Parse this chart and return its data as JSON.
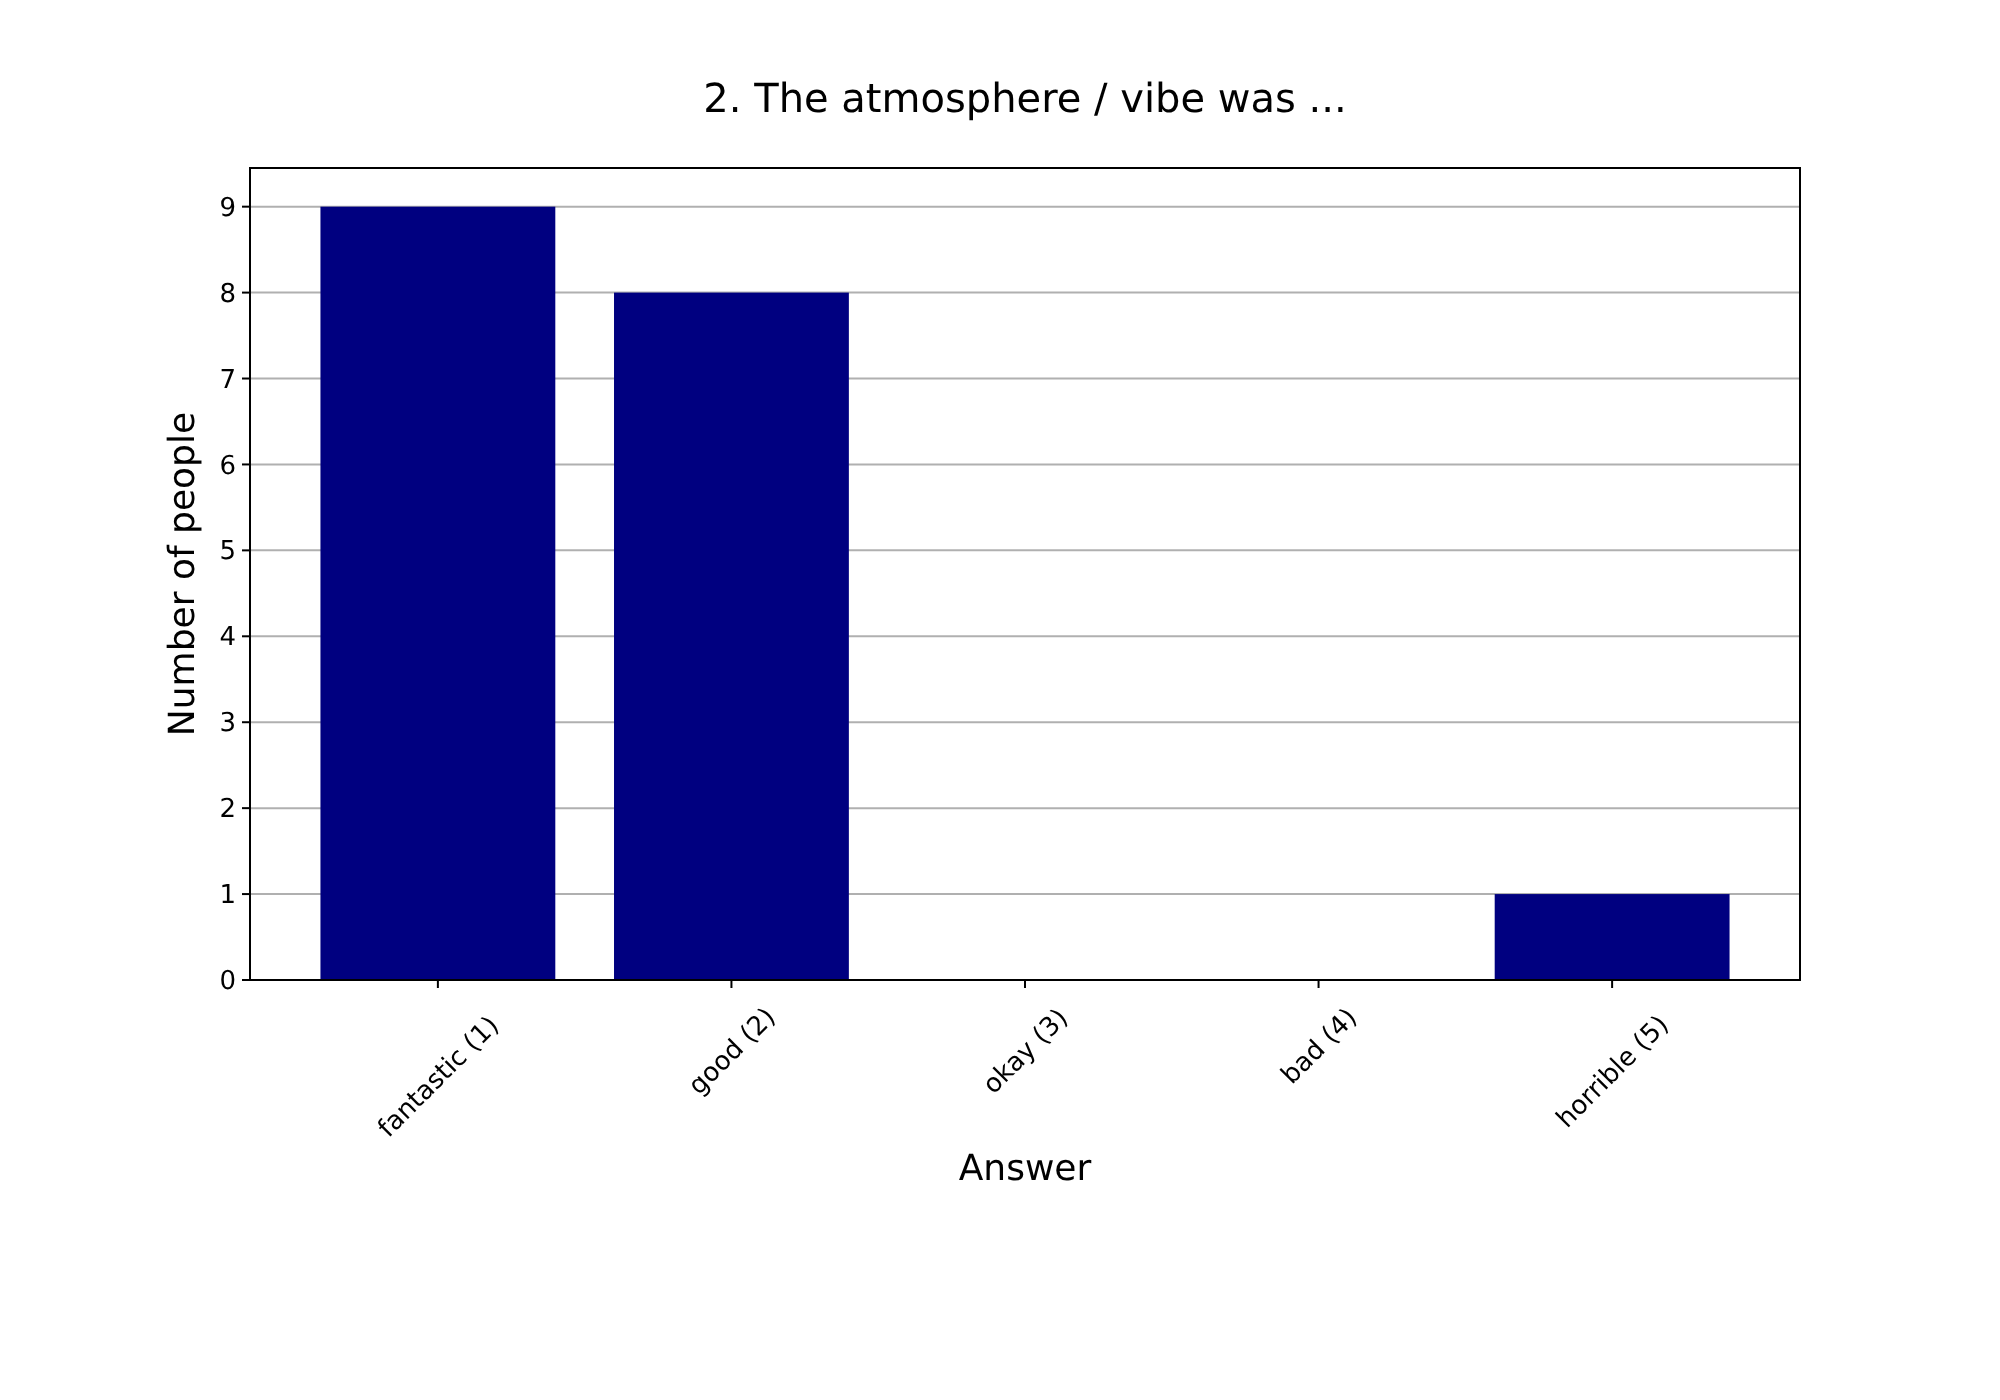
{
  "chart_data": {
    "type": "bar",
    "title": "2. The atmosphere / vibe was ...",
    "xlabel": "Answer",
    "ylabel": "Number of people",
    "categories": [
      "fantastic (1)",
      "good (2)",
      "okay (3)",
      "bad (4)",
      "horrible (5)"
    ],
    "values": [
      9,
      8,
      0,
      0,
      1
    ],
    "color": "#000080",
    "ylim": [
      0,
      9.45
    ],
    "yticks": [
      0,
      1,
      2,
      3,
      4,
      5,
      6,
      7,
      8,
      9
    ],
    "grid": "y"
  }
}
